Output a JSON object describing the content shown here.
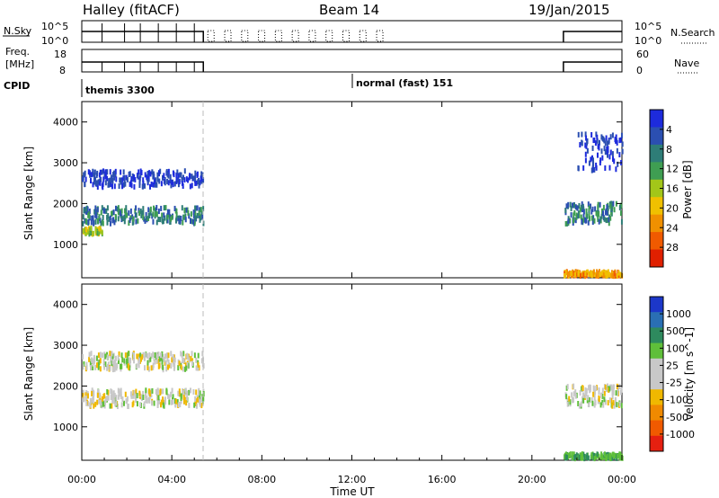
{
  "header": {
    "radar": "Halley (fitACF)",
    "beam": "Beam 14",
    "date": "19/Jan/2015"
  },
  "strips": {
    "nsky_label": "N.Sky",
    "nsky_ticks": [
      "10^5",
      "10^0"
    ],
    "nsearch_label": "N.Search",
    "nsearch_ticks": [
      "10^5",
      "10^0"
    ],
    "freq_label_1": "Freq.",
    "freq_label_2": "[MHz]",
    "freq_ticks": [
      "18",
      "8"
    ],
    "nave_label": "Nave",
    "nave_ticks": [
      "60",
      "0"
    ],
    "cpid_label": "CPID",
    "cpid_entries": [
      {
        "name": "themis 3300",
        "start_hour": 0
      },
      {
        "name": "normal (fast) 151",
        "start_hour": 12
      }
    ]
  },
  "chart_data": [
    {
      "type": "heatmap",
      "title": "",
      "xlabel": "",
      "ylabel": "Slant Range [km]",
      "x_range_hours": [
        0,
        24
      ],
      "ylim": [
        180,
        4500
      ],
      "yticks": [
        "1000",
        "2000",
        "3000",
        "4000"
      ],
      "colorbar_label": "Power [dB]",
      "colorbar_ticks": [
        "4",
        "8",
        "12",
        "16",
        "20",
        "24",
        "28"
      ],
      "colors": [
        "#1d2bdc",
        "#2b4fb1",
        "#2e7d77",
        "#3f9e52",
        "#a3c619",
        "#f0c000",
        "#f09000",
        "#f05a00",
        "#e02000"
      ],
      "data_gap_hours": [
        5.4,
        21.4
      ],
      "echo_regions": [
        {
          "t": [
            0.0,
            5.4
          ],
          "range_km": [
            2400,
            2800
          ],
          "level": "low"
        },
        {
          "t": [
            0.0,
            5.4
          ],
          "range_km": [
            1500,
            1900
          ],
          "level": "low-mid"
        },
        {
          "t": [
            0.0,
            0.9
          ],
          "range_km": [
            1250,
            1400
          ],
          "level": "mid-high"
        },
        {
          "t": [
            21.4,
            24.0
          ],
          "range_km": [
            1500,
            2000
          ],
          "level": "low-mid"
        },
        {
          "t": [
            22.0,
            24.0
          ],
          "range_km": [
            2800,
            3700
          ],
          "level": "low"
        },
        {
          "t": [
            21.4,
            24.0
          ],
          "range_km": [
            220,
            330
          ],
          "level": "high"
        }
      ]
    },
    {
      "type": "heatmap",
      "title": "",
      "xlabel": "Time UT",
      "ylabel": "Slant Range [km]",
      "x_range_hours": [
        0,
        24
      ],
      "xticks": [
        "00:00",
        "04:00",
        "08:00",
        "12:00",
        "16:00",
        "20:00",
        "00:00"
      ],
      "ylim": [
        180,
        4500
      ],
      "yticks": [
        "1000",
        "2000",
        "3000",
        "4000"
      ],
      "colorbar_label": "Velocity [m s^-1]",
      "colorbar_ticks": [
        "1000",
        "500",
        "100",
        "25",
        "-25",
        "-100",
        "-500",
        "-1000"
      ],
      "colors": [
        "#1c37c9",
        "#2a6fb4",
        "#2e8a5e",
        "#5fbf3a",
        "#c8c8c8",
        "#c8c8c8",
        "#f0b800",
        "#f08a00",
        "#f05a00",
        "#e52010"
      ],
      "data_gap_hours": [
        5.4,
        21.4
      ],
      "echo_regions": [
        {
          "t": [
            0.0,
            5.4
          ],
          "range_km": [
            2400,
            2800
          ],
          "level": "near-zero"
        },
        {
          "t": [
            0.0,
            5.4
          ],
          "range_km": [
            1500,
            1900
          ],
          "level": "near-zero"
        },
        {
          "t": [
            21.4,
            24.0
          ],
          "range_km": [
            1500,
            2000
          ],
          "level": "near-zero"
        },
        {
          "t": [
            21.4,
            24.0
          ],
          "range_km": [
            220,
            330
          ],
          "level": "positive"
        }
      ]
    }
  ]
}
